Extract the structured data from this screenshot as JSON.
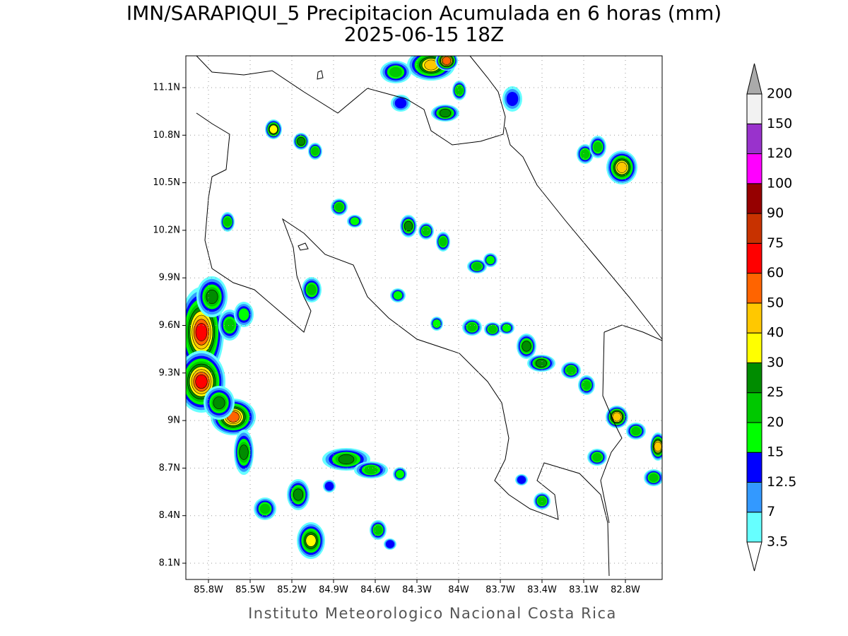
{
  "header": {
    "title": "IMN/SARAPIQUI_5 Precipitacion Acumulada en 6 horas (mm)",
    "subtitle": "2025-06-15 18Z"
  },
  "map": {
    "lat_ticks": [
      {
        "value": 11.1,
        "label": "11.1N"
      },
      {
        "value": 10.8,
        "label": "10.8N"
      },
      {
        "value": 10.5,
        "label": "10.5N"
      },
      {
        "value": 10.2,
        "label": "10.2N"
      },
      {
        "value": 9.9,
        "label": "9.9N"
      },
      {
        "value": 9.6,
        "label": "9.6N"
      },
      {
        "value": 9.3,
        "label": "9.3N"
      },
      {
        "value": 9,
        "label": "9N"
      },
      {
        "value": 8.7,
        "label": "8.7N"
      },
      {
        "value": 8.4,
        "label": "8.4N"
      },
      {
        "value": 8.1,
        "label": "8.1N"
      }
    ],
    "lon_ticks": [
      {
        "value": -85.8,
        "label": "85.8W"
      },
      {
        "value": -85.5,
        "label": "85.5W"
      },
      {
        "value": -85.2,
        "label": "85.2W"
      },
      {
        "value": -84.9,
        "label": "84.9W"
      },
      {
        "value": -84.6,
        "label": "84.6W"
      },
      {
        "value": -84.3,
        "label": "84.3W"
      },
      {
        "value": -84,
        "label": "84W"
      },
      {
        "value": -83.7,
        "label": "83.7W"
      },
      {
        "value": -83.4,
        "label": "83.4W"
      },
      {
        "value": -83.1,
        "label": "83.1W"
      },
      {
        "value": -82.8,
        "label": "82.8W"
      }
    ]
  },
  "colorbar": {
    "levels": [
      3.5,
      7,
      12.5,
      15,
      20,
      25,
      30,
      40,
      50,
      60,
      75,
      90,
      100,
      120,
      150,
      200
    ],
    "colors": [
      "#66ffff",
      "#3399ff",
      "#0000ff",
      "#00ff00",
      "#00c800",
      "#008c00",
      "#ffff00",
      "#ffc800",
      "#ff6400",
      "#ff0000",
      "#c83200",
      "#960000",
      "#ff00ff",
      "#9932cc",
      "#f2f2f2"
    ],
    "under_color": "#ffffff",
    "over_color": "#aaaaaa"
  },
  "footer": {
    "credit": "Instituto Meteorologico Nacional Costa Rica"
  }
}
